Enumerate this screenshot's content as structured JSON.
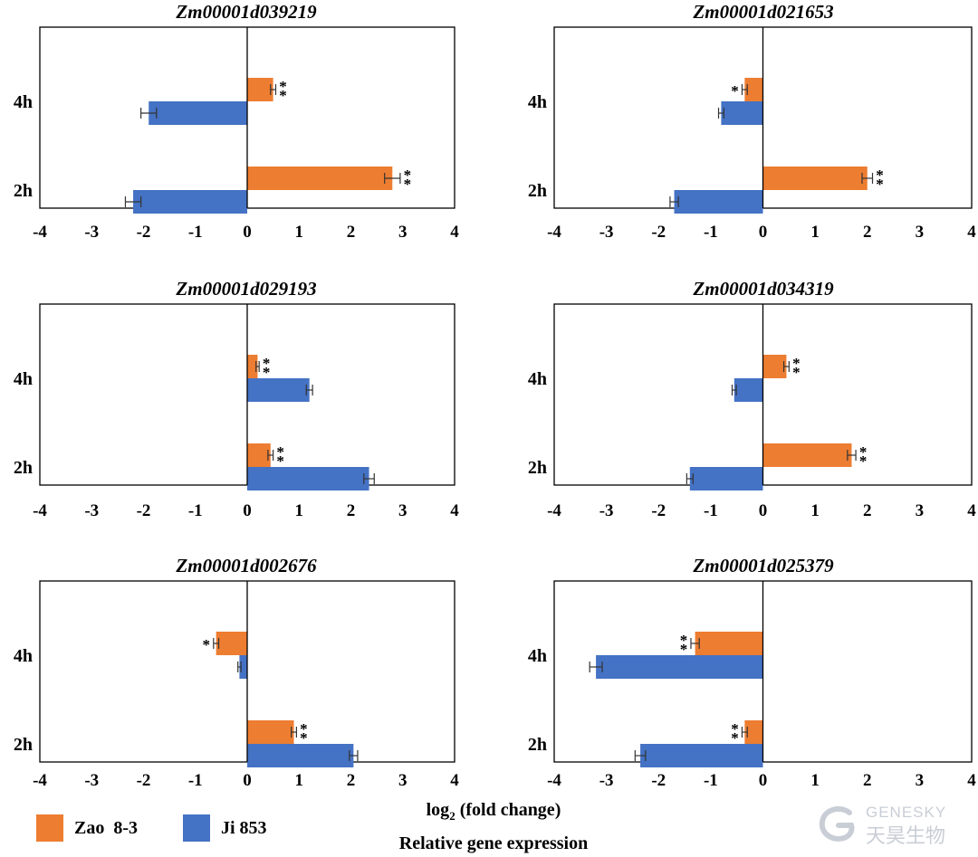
{
  "chart_data": [
    {
      "type": "bar",
      "orientation": "horizontal",
      "title": "Zm00001d039219",
      "categories": [
        "4h",
        "2h"
      ],
      "series": [
        {
          "name": "Zao 8-3",
          "values": [
            0.5,
            2.8
          ],
          "errors": [
            0.05,
            0.15
          ],
          "significance": [
            "**",
            "**"
          ]
        },
        {
          "name": "Ji 853",
          "values": [
            -1.9,
            -2.2
          ],
          "errors": [
            0.15,
            0.15
          ],
          "significance": [
            "",
            ""
          ]
        }
      ],
      "xlim": [
        -4,
        4
      ],
      "xticks": [
        "-4",
        "-3",
        "-2",
        "-1",
        "0",
        "1",
        "2",
        "3",
        "4"
      ]
    },
    {
      "type": "bar",
      "orientation": "horizontal",
      "title": "Zm00001d021653",
      "categories": [
        "4h",
        "2h"
      ],
      "series": [
        {
          "name": "Zao 8-3",
          "values": [
            -0.35,
            2.0
          ],
          "errors": [
            0.05,
            0.1
          ],
          "significance": [
            "*",
            "**"
          ]
        },
        {
          "name": "Ji 853",
          "values": [
            -0.8,
            -1.7
          ],
          "errors": [
            0.05,
            0.08
          ],
          "significance": [
            "",
            ""
          ]
        }
      ],
      "xlim": [
        -4,
        4
      ],
      "xticks": [
        "-4",
        "-3",
        "-2",
        "-1",
        "0",
        "1",
        "2",
        "3",
        "4"
      ]
    },
    {
      "type": "bar",
      "orientation": "horizontal",
      "title": "Zm00001d029193",
      "categories": [
        "4h",
        "2h"
      ],
      "series": [
        {
          "name": "Zao 8-3",
          "values": [
            0.2,
            0.45
          ],
          "errors": [
            0.03,
            0.05
          ],
          "significance": [
            "**",
            "**"
          ]
        },
        {
          "name": "Ji 853",
          "values": [
            1.2,
            2.35
          ],
          "errors": [
            0.06,
            0.1
          ],
          "significance": [
            "",
            ""
          ]
        }
      ],
      "xlim": [
        -4,
        4
      ],
      "xticks": [
        "-4",
        "-3",
        "-2",
        "-1",
        "0",
        "1",
        "2",
        "3",
        "4"
      ]
    },
    {
      "type": "bar",
      "orientation": "horizontal",
      "title": "Zm00001d034319",
      "categories": [
        "4h",
        "2h"
      ],
      "series": [
        {
          "name": "Zao 8-3",
          "values": [
            0.45,
            1.7
          ],
          "errors": [
            0.05,
            0.08
          ],
          "significance": [
            "**",
            "**"
          ]
        },
        {
          "name": "Ji 853",
          "values": [
            -0.55,
            -1.4
          ],
          "errors": [
            0.04,
            0.06
          ],
          "significance": [
            "",
            ""
          ]
        }
      ],
      "xlim": [
        -4,
        4
      ],
      "xticks": [
        "-4",
        "-3",
        "-2",
        "-1",
        "0",
        "1",
        "2",
        "3",
        "4"
      ]
    },
    {
      "type": "bar",
      "orientation": "horizontal",
      "title": "Zm00001d002676",
      "categories": [
        "4h",
        "2h"
      ],
      "series": [
        {
          "name": "Zao 8-3",
          "values": [
            -0.6,
            0.9
          ],
          "errors": [
            0.05,
            0.05
          ],
          "significance": [
            "*",
            "**"
          ]
        },
        {
          "name": "Ji 853",
          "values": [
            -0.15,
            2.05
          ],
          "errors": [
            0.03,
            0.08
          ],
          "significance": [
            "",
            ""
          ]
        }
      ],
      "xlim": [
        -4,
        4
      ],
      "xticks": [
        "-4",
        "-3",
        "-2",
        "-1",
        "0",
        "1",
        "2",
        "3",
        "4"
      ]
    },
    {
      "type": "bar",
      "orientation": "horizontal",
      "title": "Zm00001d025379",
      "categories": [
        "4h",
        "2h"
      ],
      "series": [
        {
          "name": "Zao 8-3",
          "values": [
            -1.3,
            -0.35
          ],
          "errors": [
            0.08,
            0.05
          ],
          "significance": [
            "**",
            "**"
          ]
        },
        {
          "name": "Ji 853",
          "values": [
            -3.2,
            -2.35
          ],
          "errors": [
            0.12,
            0.1
          ],
          "significance": [
            "",
            ""
          ]
        }
      ],
      "xlim": [
        -4,
        4
      ],
      "xticks": [
        "-4",
        "-3",
        "-2",
        "-1",
        "0",
        "1",
        "2",
        "3",
        "4"
      ]
    }
  ],
  "legend": {
    "items": [
      {
        "label": "Zao  8-3",
        "color": "#ED7D31"
      },
      {
        "label": "Ji 853",
        "color": "#4472C4"
      }
    ]
  },
  "xlabel": {
    "line1_prefix": "log",
    "line1_sub": "2",
    "line1_suffix": " (fold change)",
    "line2": "Relative gene expression"
  },
  "colors": {
    "orange": "#ED7D31",
    "blue": "#4472C4"
  },
  "watermark": {
    "text_top": "GENESKY",
    "text_bottom": "天昊生物",
    "icon": "genesky-logo-icon"
  }
}
